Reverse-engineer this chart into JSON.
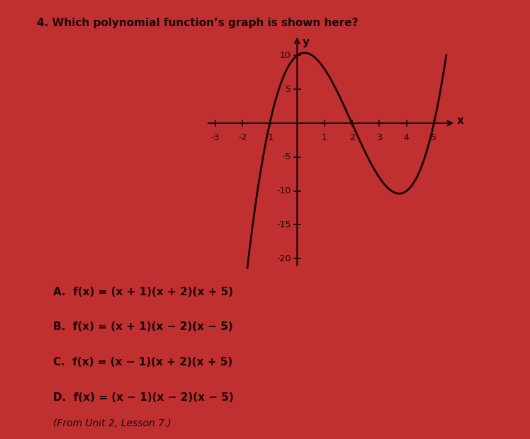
{
  "title": "4. Which polynomial function’s graph is shown here?",
  "background_color": "#c03030",
  "plot_bg_color": "#c03030",
  "xlim": [
    -3.5,
    5.8
  ],
  "ylim": [
    -22,
    13
  ],
  "xticks": [
    -3,
    -2,
    -1,
    1,
    2,
    3,
    4,
    5
  ],
  "yticks": [
    -20,
    -15,
    -10,
    -5,
    5,
    10
  ],
  "curve_color": "#1a0505",
  "axis_color": "#1a0505",
  "text_color": "#1a0505",
  "curve_xmin": -1.82,
  "curve_xmax": 5.45,
  "choices": [
    "A.  f(x) = (x + 1)(x + 2)(x + 5)",
    "B.  f(x) = (x + 1)(x − 2)(x − 5)",
    "C.  f(x) = (x − 1)(x + 2)(x + 5)",
    "D.  f(x) = (x − 1)(x − 2)(x − 5)"
  ],
  "footnote": "(From Unit 2, Lesson 7.)",
  "xlabel": "x",
  "ylabel": "y",
  "title_fontsize": 11,
  "choice_fontsize": 11,
  "footnote_fontsize": 10,
  "tick_fontsize": 9,
  "axis_label_fontsize": 11,
  "linewidth": 2.0
}
